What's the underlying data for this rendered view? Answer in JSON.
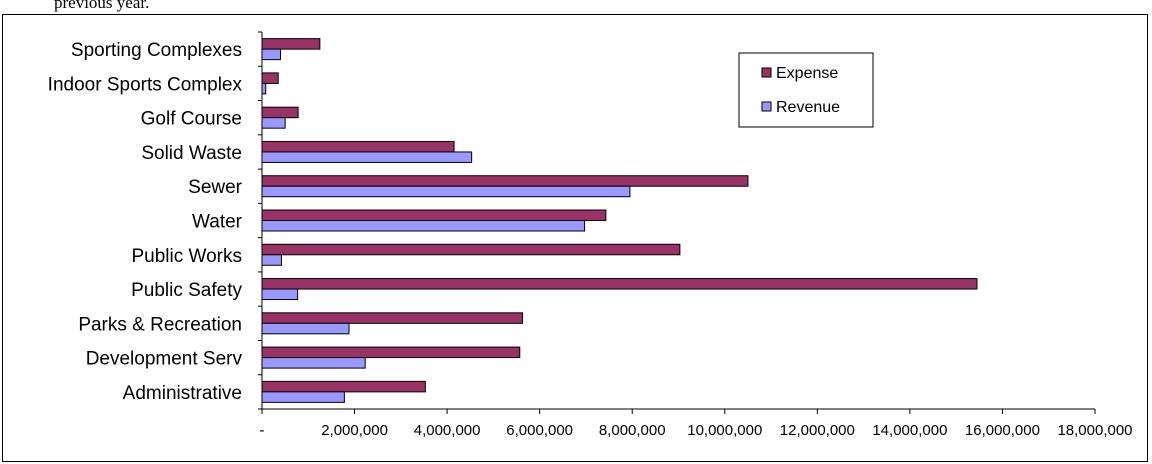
{
  "caption": "previous year.",
  "colors": {
    "expense": "#993366",
    "revenue": "#9999FF"
  },
  "chart_data": {
    "type": "bar",
    "orientation": "horizontal",
    "title": "",
    "xlabel": "",
    "ylabel": "",
    "categories": [
      "Sporting Complexes",
      "Indoor Sports Complex",
      "Golf Course",
      "Solid Waste",
      "Sewer",
      "Water",
      "Public Works",
      "Public Safety",
      "Parks & Recreation",
      "Development Serv",
      "Administrative"
    ],
    "series": [
      {
        "name": "Expense",
        "values": [
          1250000,
          350000,
          780000,
          4150000,
          10500000,
          7430000,
          9030000,
          15450000,
          5630000,
          5570000,
          3530000
        ]
      },
      {
        "name": "Revenue",
        "values": [
          400000,
          80000,
          500000,
          4530000,
          7950000,
          6970000,
          420000,
          770000,
          1880000,
          2230000,
          1780000
        ]
      }
    ],
    "xlim": [
      0,
      18000000
    ],
    "xticks": [
      "-",
      "2,000,000",
      "4,000,000",
      "6,000,000",
      "8,000,000",
      "10,000,000",
      "12,000,000",
      "14,000,000",
      "16,000,000",
      "18,000,000"
    ],
    "grid": false,
    "legend": "top-right"
  }
}
